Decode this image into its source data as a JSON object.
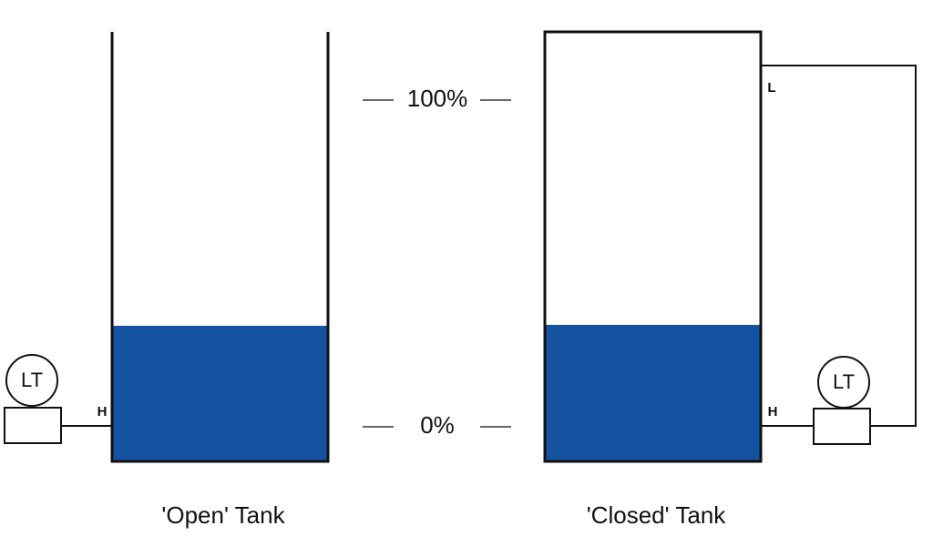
{
  "scale": {
    "top": "100%",
    "bottom": "0%"
  },
  "tanks": [
    {
      "label": "'Open' Tank",
      "transmitter": "LT",
      "taps": [
        "H"
      ]
    },
    {
      "label": "'Closed' Tank",
      "transmitter": "LT",
      "taps": [
        "H",
        "L"
      ]
    }
  ]
}
